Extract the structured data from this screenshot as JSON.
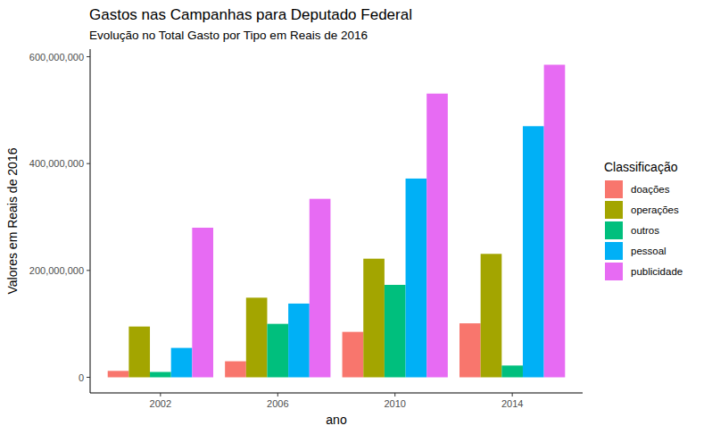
{
  "chart_data": {
    "type": "bar",
    "title": "Gastos nas Campanhas para Deputado Federal",
    "subtitle": "Evolução no Total Gasto por Tipo em Reais de 2016",
    "x_label": "ano",
    "y_label": "Valores em Reais de 2016",
    "categories": [
      "2002",
      "2006",
      "2010",
      "2014"
    ],
    "legend_title": "Classificação",
    "series": [
      {
        "name": "doações",
        "color": "#F8766D",
        "values": [
          12000000,
          30000000,
          85000000,
          101000000
        ]
      },
      {
        "name": "operações",
        "color": "#A3A500",
        "values": [
          95000000,
          149000000,
          222000000,
          231000000
        ]
      },
      {
        "name": "outros",
        "color": "#00BF7D",
        "values": [
          10000000,
          100000000,
          173000000,
          22000000
        ]
      },
      {
        "name": "pessoal",
        "color": "#00B0F6",
        "values": [
          55000000,
          138000000,
          372000000,
          470000000
        ]
      },
      {
        "name": "publicidade",
        "color": "#E76BF3",
        "values": [
          280000000,
          334000000,
          531000000,
          585000000
        ]
      }
    ],
    "ylim": [
      -29250000,
      614250000
    ],
    "yticks": [
      0,
      {
        "value": 200000000,
        "label": "200,000,000"
      },
      {
        "value": 400000000,
        "label": "400,000,000"
      },
      {
        "value": 600000000,
        "label": "600,000,000"
      }
    ],
    "grid": false,
    "legend": "right"
  }
}
